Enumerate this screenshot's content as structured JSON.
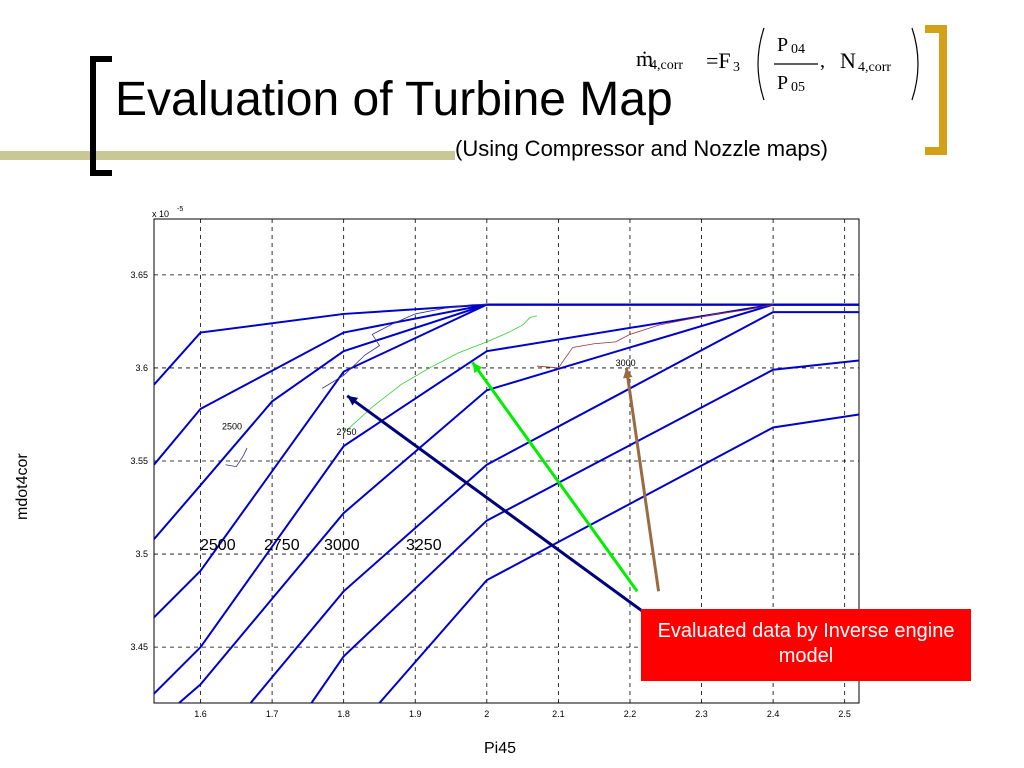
{
  "slide": {
    "title": "Evaluation of Turbine Map",
    "subtitle": "(Using Compressor and Nozzle maps)",
    "callout": "Evaluated data by Inverse engine model",
    "speed_labels": [
      "2500",
      "2750",
      "3000",
      "3250"
    ],
    "equation": {
      "lhs": "ṁ",
      "lhs_sub": "4,corr",
      "eq": "=F",
      "func_sub": "3",
      "num": "P",
      "num_sub": "04",
      "den": "P",
      "den_sub": "05",
      "comma": ",",
      "n": "N",
      "n_sub": "4,corr"
    },
    "colors": {
      "bracket_left": "#000000",
      "bracket_right": "#d4a017",
      "band": "#c8c896",
      "lines": "#0000cc",
      "callout_bg": "#ff0000"
    }
  },
  "chart_data": {
    "type": "line",
    "xlabel": "Pi45",
    "ylabel": "mdot4cor",
    "y_exponent_label": "x 10",
    "y_exponent": "-5",
    "xlim": [
      1.535,
      2.52
    ],
    "ylim": [
      3.42,
      3.68
    ],
    "x_ticks": [
      1.6,
      1.7,
      1.8,
      1.9,
      2,
      2.1,
      2.2,
      2.3,
      2.4,
      2.5
    ],
    "x_tick_labels": [
      "1.6",
      "1.7",
      "1.8",
      "1.9",
      "2",
      "2.1",
      "2.2",
      "2.3",
      "2.4",
      "2.5"
    ],
    "y_ticks": [
      3.45,
      3.5,
      3.55,
      3.6,
      3.65
    ],
    "y_tick_labels": [
      "3.45",
      "3.5",
      "3.55",
      "3.6",
      "3.65"
    ],
    "grid": true,
    "map_lines": [
      {
        "x": [
          1.535,
          1.6,
          1.8,
          2.0,
          2.52
        ],
        "y": [
          3.591,
          3.619,
          3.629,
          3.634,
          3.634
        ]
      },
      {
        "x": [
          1.535,
          1.6,
          1.8,
          2.0,
          2.52
        ],
        "y": [
          3.548,
          3.578,
          3.619,
          3.634,
          3.634
        ]
      },
      {
        "x": [
          1.535,
          1.6,
          1.7,
          1.8,
          2.0,
          2.52
        ],
        "y": [
          3.508,
          3.537,
          3.582,
          3.609,
          3.634,
          3.634
        ]
      },
      {
        "x": [
          1.535,
          1.6,
          1.8,
          2.0,
          2.4,
          2.52
        ],
        "y": [
          3.466,
          3.491,
          3.598,
          3.634,
          3.634,
          3.634
        ]
      },
      {
        "x": [
          1.535,
          1.6,
          1.8,
          2.0,
          2.4,
          2.52
        ],
        "y": [
          3.425,
          3.45,
          3.558,
          3.609,
          3.634,
          3.634
        ]
      },
      {
        "x": [
          1.57,
          1.6,
          1.8,
          2.0,
          2.4,
          2.52
        ],
        "y": [
          3.42,
          3.43,
          3.522,
          3.588,
          3.634,
          3.634
        ]
      },
      {
        "x": [
          1.67,
          1.8,
          2.0,
          2.4,
          2.52
        ],
        "y": [
          3.42,
          3.48,
          3.548,
          3.63,
          3.63
        ]
      },
      {
        "x": [
          1.755,
          1.8,
          2.0,
          2.4,
          2.52
        ],
        "y": [
          3.42,
          3.445,
          3.518,
          3.599,
          3.604
        ]
      },
      {
        "x": [
          1.85,
          2.0,
          2.4,
          2.52
        ],
        "y": [
          3.42,
          3.486,
          3.568,
          3.575
        ]
      }
    ],
    "evaluated_series": [
      {
        "color": "#2e2e9a",
        "x": [
          1.77,
          1.8,
          1.83,
          1.85,
          1.84,
          1.87,
          1.9,
          1.94,
          1.98,
          2.0
        ],
        "y": [
          3.589,
          3.596,
          3.607,
          3.612,
          3.618,
          3.624,
          3.629,
          3.632,
          3.634,
          3.634
        ]
      },
      {
        "color": "#33cc33",
        "x": [
          1.8,
          1.84,
          1.88,
          1.92,
          1.96,
          2.0,
          2.03,
          2.05,
          2.06,
          2.07
        ],
        "y": [
          3.565,
          3.579,
          3.591,
          3.6,
          3.608,
          3.614,
          3.619,
          3.623,
          3.627,
          3.628
        ]
      },
      {
        "color": "#993333",
        "x": [
          2.07,
          2.1,
          2.12,
          2.15,
          2.18,
          2.2,
          2.24,
          2.28,
          2.32,
          2.36,
          2.4
        ],
        "y": [
          3.601,
          3.6,
          3.611,
          3.613,
          3.614,
          3.618,
          3.623,
          3.626,
          3.629,
          3.631,
          3.634
        ]
      },
      {
        "color": "#2e2e9a",
        "x": [
          1.635,
          1.65,
          1.66,
          1.665
        ],
        "y": [
          3.548,
          3.547,
          3.553,
          3.557
        ]
      }
    ],
    "contour_labels": [
      {
        "text": "2500",
        "x": 1.63,
        "y": 3.567
      },
      {
        "text": "2750",
        "x": 1.79,
        "y": 3.564
      },
      {
        "text": "3000",
        "x": 2.18,
        "y": 3.601
      }
    ],
    "arrows": [
      {
        "color": "#00007a",
        "from": [
          2.24,
          3.463
        ],
        "to": [
          1.805,
          3.585
        ]
      },
      {
        "color": "#00ee00",
        "from": [
          2.21,
          3.48
        ],
        "to": [
          1.98,
          3.603
        ]
      },
      {
        "color": "#9a6a40",
        "from": [
          2.24,
          3.48
        ],
        "to": [
          2.195,
          3.6
        ]
      }
    ]
  }
}
